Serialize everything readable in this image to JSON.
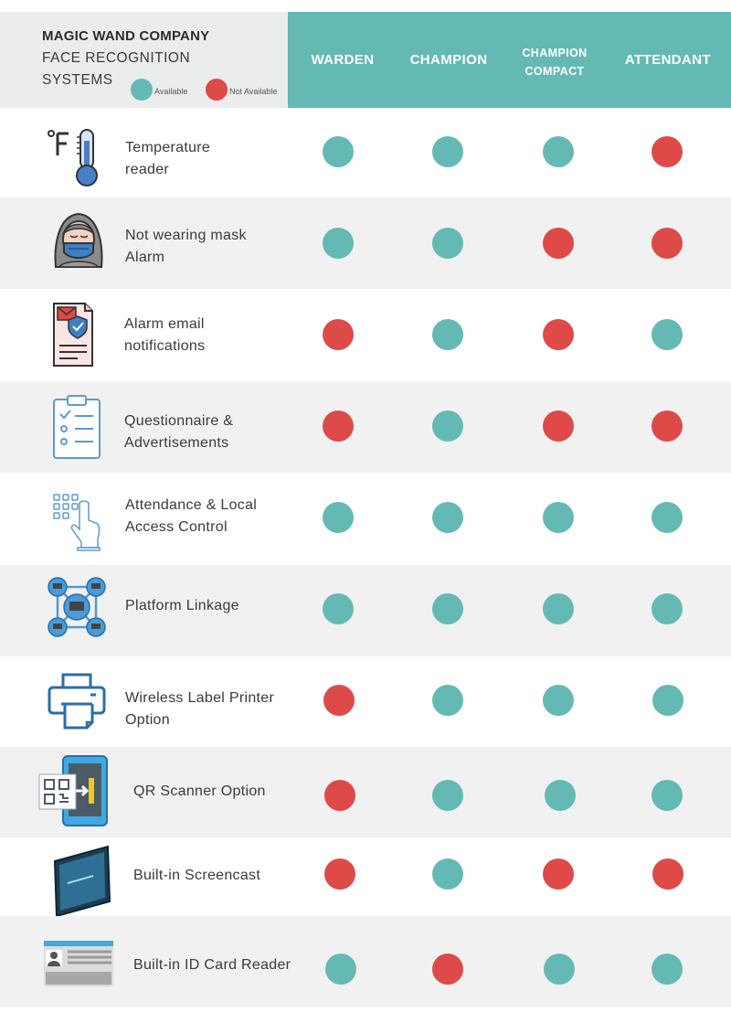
{
  "header": {
    "company": "MAGIC WAND COMPANY",
    "subtitle_line1": "FACE RECOGNITION",
    "subtitle_line2": "SYSTEMS",
    "legend": {
      "available_label": "Available",
      "not_available_label": "Not Available"
    },
    "columns": {
      "warden": "WARDEN",
      "champion": "CHAMPION",
      "champion_compact_line1": "CHAMPION",
      "champion_compact_line2": "COMPACT",
      "attendant": "ATTENDANT"
    }
  },
  "colors": {
    "available": "#65b9b4",
    "not_available": "#dd4a48",
    "header_teal": "#65b9b4",
    "header_grey": "#ebecec",
    "row_shade": "#f1f1f1"
  },
  "features": [
    {
      "line1": "Temperature",
      "line2": "reader",
      "icon": "thermometer-icon",
      "availability": [
        "available",
        "available",
        "available",
        "not_available"
      ]
    },
    {
      "line1": "Not wearing mask",
      "line2": "Alarm",
      "icon": "masked-person-icon",
      "availability": [
        "available",
        "available",
        "not_available",
        "not_available"
      ]
    },
    {
      "line1": "Alarm email",
      "line2": "notifications",
      "icon": "email-document-icon",
      "availability": [
        "not_available",
        "available",
        "not_available",
        "available"
      ]
    },
    {
      "line1": "Questionnaire &",
      "line2": "Advertisements",
      "icon": "clipboard-checklist-icon",
      "availability": [
        "not_available",
        "available",
        "not_available",
        "not_available"
      ]
    },
    {
      "line1": "Attendance & Local",
      "line2": "Access Control",
      "icon": "keypad-touch-icon",
      "availability": [
        "available",
        "available",
        "available",
        "available"
      ]
    },
    {
      "line1": "Platform Linkage",
      "line2": "",
      "icon": "network-linkage-icon",
      "availability": [
        "available",
        "available",
        "available",
        "available"
      ]
    },
    {
      "line1": "Wireless Label Printer",
      "line2": "Option",
      "icon": "printer-icon",
      "availability": [
        "not_available",
        "available",
        "available",
        "available"
      ]
    },
    {
      "line1": "QR Scanner Option",
      "line2": "",
      "icon": "qr-scanner-icon",
      "availability": [
        "not_available",
        "available",
        "available",
        "available"
      ]
    },
    {
      "line1": "Built-in Screencast",
      "line2": "",
      "icon": "screen-tablet-icon",
      "availability": [
        "not_available",
        "available",
        "not_available",
        "not_available"
      ]
    },
    {
      "line1": "Built-in ID Card Reader",
      "line2": "",
      "icon": "id-card-icon",
      "availability": [
        "available",
        "not_available",
        "available",
        "available"
      ]
    }
  ]
}
